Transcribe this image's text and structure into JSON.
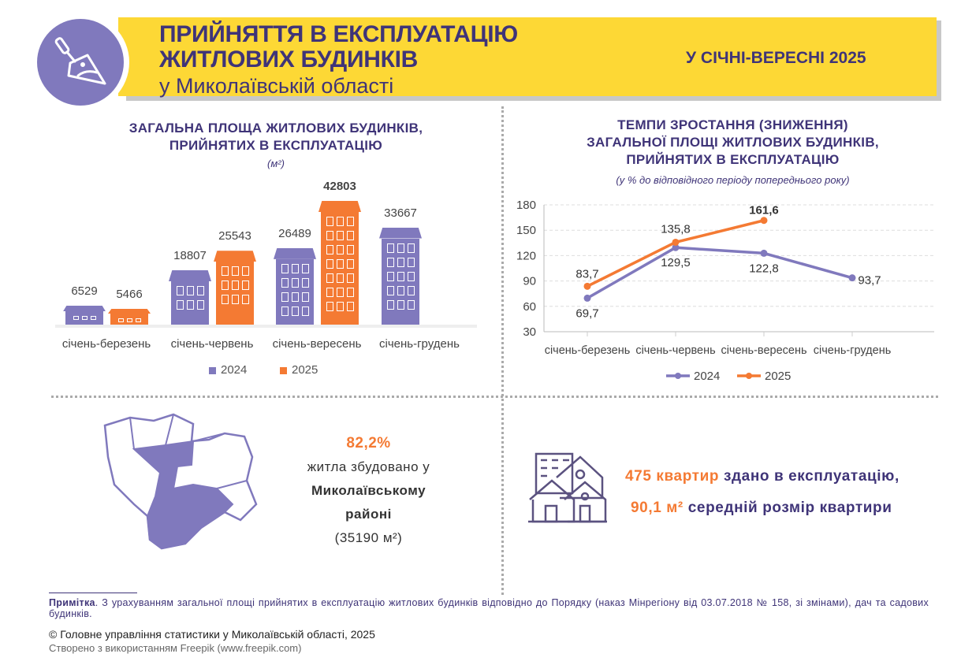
{
  "header": {
    "title_line1": "ПРИЙНЯТТЯ В ЕКСПЛУАТАЦІЮ",
    "title_line2": "ЖИТЛОВИХ БУДИНКІВ",
    "subtitle": "у Миколаївській області",
    "period": "У СІЧНІ-ВЕРЕСНІ 2025",
    "icon": "trowel-icon"
  },
  "colors": {
    "c2024": "#8079bd",
    "c2025": "#f47a33",
    "accent_yellow": "#fdd835",
    "title": "#3f3478"
  },
  "chart_data": [
    {
      "type": "bar",
      "title": "ЗАГАЛЬНА ПЛОЩА ЖИТЛОВИХ БУДИНКІВ, ПРИЙНЯТИХ В ЕКСПЛУАТАЦІЮ",
      "title_line1": "ЗАГАЛЬНА ПЛОЩА ЖИТЛОВИХ БУДИНКІВ,",
      "title_line2": "ПРИЙНЯТИХ В ЕКСПЛУАТАЦІЮ",
      "unit": "(м²)",
      "categories": [
        "січень-березень",
        "січень-червень",
        "січень-вересень",
        "січень-грудень"
      ],
      "series": [
        {
          "name": "2024",
          "values": [
            6529,
            18807,
            26489,
            33667
          ],
          "labels": [
            "6529",
            "18807",
            "26489",
            "33667"
          ]
        },
        {
          "name": "2025",
          "values": [
            5466,
            25543,
            42803,
            null
          ],
          "labels": [
            "5466",
            "25543",
            "42803",
            ""
          ]
        }
      ],
      "legend": "bottom",
      "grid": false
    },
    {
      "type": "line",
      "title_line1": "ТЕМПИ ЗРОСТАННЯ (ЗНИЖЕННЯ)",
      "title_line2": "ЗАГАЛЬНОЇ ПЛОЩІ ЖИТЛОВИХ БУДИНКІВ,",
      "title_line3": "ПРИЙНЯТИХ В ЕКСПЛУАТАЦІЮ",
      "subtitle": "(у % до відповідного періоду попереднього року)",
      "categories": [
        "січень-березень",
        "січень-червень",
        "січень-вересень",
        "січень-грудень"
      ],
      "ylim": [
        30,
        180
      ],
      "yticks": [
        "30",
        "60",
        "90",
        "120",
        "150",
        "180"
      ],
      "grid": true,
      "legend": "bottom",
      "series": [
        {
          "name": "2024",
          "values": [
            69.7,
            129.5,
            122.8,
            93.7
          ],
          "labels": [
            "69,7",
            "129,5",
            "122,8",
            "93,7"
          ]
        },
        {
          "name": "2025",
          "values": [
            83.7,
            135.8,
            161.6,
            null
          ],
          "labels": [
            "83,7",
            "135,8",
            "161,6",
            ""
          ]
        }
      ]
    }
  ],
  "district": {
    "percent": "82,2%",
    "line1": "житла збудовано у",
    "line2": "Миколаївському",
    "line3": "районі",
    "area": "(35190 м²)",
    "icon": "region-map-icon"
  },
  "apartments": {
    "count": "475",
    "count_label": "квартир",
    "count_rest": "здано в експлуатацію,",
    "avg": "90,1 м²",
    "avg_rest": "середній розмір квартири",
    "icon": "houses-icon"
  },
  "footer": {
    "note_label": "Примітка",
    "note_text": ". З урахуванням загальної площі прийнятих в експлуатацію житлових будинків відповідно до Порядку (наказ Мінрегіону від 03.07.2018 № 158, зі змінами), дач та садових будинків.",
    "copyright": "© Головне управління статистики у Миколаївській області, 2025",
    "credit": "Створено з використанням Freepik (www.freepik.com)"
  }
}
